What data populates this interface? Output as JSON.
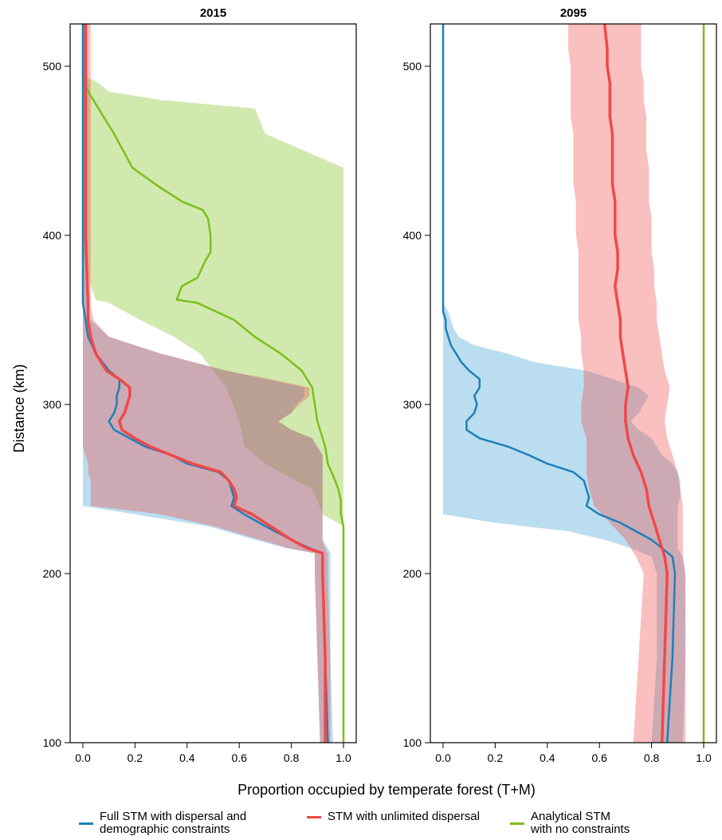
{
  "chart_data": {
    "type": "line",
    "xlabel": "Proportion occupied by temperate forest (T+M)",
    "ylabel": "Distance (km)",
    "xlim": [
      0,
      1
    ],
    "ylim": [
      100,
      525
    ],
    "xticks": [
      "0.0",
      "0.2",
      "0.4",
      "0.6",
      "0.8",
      "1.0"
    ],
    "yticks": [
      "100",
      "200",
      "300",
      "400",
      "500"
    ],
    "legend_position": "bottom",
    "colors": {
      "full": "#1f7fb8",
      "unlimited": "#f04848",
      "analytical": "#7cbf1a"
    },
    "legend": [
      {
        "key": "full",
        "label": "Full STM with dispersal and\ndemographic constraints"
      },
      {
        "key": "unlimited",
        "label": "STM with unlimited dispersal"
      },
      {
        "key": "analytical",
        "label": "Analytical STM\nwith no constraints"
      }
    ],
    "panels": [
      {
        "title": "2015",
        "series": [
          {
            "key": "analytical",
            "y": [
              100,
              228,
              235,
              243,
              250,
              258,
              265,
              275,
              290,
              310,
              320,
              330,
              340,
              350,
              360,
              362,
              370,
              375,
              385,
              390,
              400,
              410,
              415,
              420,
              430,
              440,
              460,
              475,
              480,
              485,
              490,
              495,
              525
            ],
            "x": [
              1.0,
              1.0,
              0.99,
              0.99,
              0.98,
              0.96,
              0.94,
              0.93,
              0.9,
              0.88,
              0.84,
              0.76,
              0.66,
              0.58,
              0.44,
              0.36,
              0.38,
              0.44,
              0.47,
              0.49,
              0.49,
              0.48,
              0.46,
              0.38,
              0.28,
              0.19,
              0.12,
              0.06,
              0.04,
              0.02,
              0.01,
              0.0,
              0.0
            ],
            "upper": [
              1.0,
              1.0,
              1.0,
              1.0,
              1.0,
              1.0,
              1.0,
              1.0,
              1.0,
              1.0,
              1.0,
              1.0,
              1.0,
              1.0,
              1.0,
              1.0,
              1.0,
              1.0,
              1.0,
              1.0,
              1.0,
              1.0,
              1.0,
              1.0,
              1.0,
              1.0,
              0.7,
              0.66,
              0.3,
              0.1,
              0.06,
              0.0,
              0.0
            ],
            "lower": [
              1.0,
              1.0,
              0.92,
              0.9,
              0.88,
              0.78,
              0.7,
              0.62,
              0.6,
              0.55,
              0.5,
              0.45,
              0.35,
              0.22,
              0.1,
              0.05,
              0.03,
              0.02,
              0.01,
              0.0,
              0.0,
              0.0,
              0.0,
              0.0,
              0.0,
              0.0,
              0.0,
              0.0,
              0.0,
              0.0,
              0.0,
              0.0,
              0.0
            ]
          },
          {
            "key": "full",
            "y": [
              100,
              150,
              200,
              212,
              215,
              220,
              228,
              235,
              240,
              245,
              250,
              255,
              260,
              265,
              270,
              275,
              280,
              285,
              290,
              295,
              300,
              305,
              310,
              315,
              320,
              330,
              340,
              350,
              360,
              400,
              450,
              500,
              525
            ],
            "x": [
              0.94,
              0.93,
              0.92,
              0.92,
              0.87,
              0.8,
              0.7,
              0.62,
              0.57,
              0.58,
              0.57,
              0.56,
              0.52,
              0.4,
              0.34,
              0.24,
              0.18,
              0.12,
              0.1,
              0.12,
              0.13,
              0.13,
              0.14,
              0.14,
              0.1,
              0.05,
              0.02,
              0.01,
              0.0,
              0.0,
              0.0,
              0.0,
              0.0
            ],
            "upper": [
              0.96,
              0.95,
              0.95,
              0.95,
              0.94,
              0.92,
              0.92,
              0.92,
              0.92,
              0.92,
              0.92,
              0.92,
              0.92,
              0.92,
              0.92,
              0.9,
              0.88,
              0.8,
              0.75,
              0.8,
              0.82,
              0.85,
              0.85,
              0.7,
              0.55,
              0.3,
              0.1,
              0.03,
              0.02,
              0.02,
              0.02,
              0.02,
              0.02
            ],
            "lower": [
              0.91,
              0.9,
              0.89,
              0.89,
              0.78,
              0.66,
              0.48,
              0.2,
              0.0,
              0.0,
              0.0,
              0.0,
              0.0,
              0.0,
              0.0,
              0.0,
              0.0,
              0.0,
              0.0,
              0.0,
              0.0,
              0.0,
              0.0,
              0.0,
              0.0,
              0.0,
              0.0,
              0.0,
              0.0,
              0.0,
              0.0,
              0.0,
              0.0
            ]
          },
          {
            "key": "unlimited",
            "y": [
              100,
              150,
              200,
              212,
              215,
              220,
              228,
              235,
              240,
              245,
              250,
              255,
              260,
              265,
              270,
              275,
              280,
              285,
              290,
              295,
              300,
              305,
              310,
              315,
              320,
              330,
              340,
              350,
              360,
              400,
              450,
              500,
              525
            ],
            "x": [
              0.93,
              0.93,
              0.92,
              0.92,
              0.86,
              0.8,
              0.72,
              0.65,
              0.58,
              0.59,
              0.58,
              0.56,
              0.53,
              0.42,
              0.34,
              0.26,
              0.2,
              0.15,
              0.14,
              0.16,
              0.17,
              0.18,
              0.18,
              0.14,
              0.09,
              0.05,
              0.03,
              0.02,
              0.02,
              0.01,
              0.01,
              0.01,
              0.01
            ],
            "upper": [
              0.95,
              0.95,
              0.94,
              0.94,
              0.93,
              0.92,
              0.92,
              0.92,
              0.92,
              0.92,
              0.92,
              0.92,
              0.92,
              0.92,
              0.92,
              0.9,
              0.88,
              0.8,
              0.75,
              0.8,
              0.83,
              0.87,
              0.87,
              0.72,
              0.55,
              0.3,
              0.1,
              0.04,
              0.03,
              0.03,
              0.03,
              0.03,
              0.03
            ],
            "lower": [
              0.91,
              0.9,
              0.89,
              0.89,
              0.79,
              0.68,
              0.5,
              0.3,
              0.03,
              0.03,
              0.03,
              0.03,
              0.02,
              0.02,
              0.01,
              0.0,
              0.0,
              0.0,
              0.0,
              0.0,
              0.0,
              0.0,
              0.0,
              0.0,
              0.0,
              0.0,
              0.0,
              0.0,
              0.0,
              0.0,
              0.0,
              0.0,
              0.0
            ]
          }
        ]
      },
      {
        "title": "2095",
        "series": [
          {
            "key": "analytical",
            "y": [
              100,
              525
            ],
            "x": [
              1.0,
              1.0
            ],
            "upper": [
              1.0,
              1.0
            ],
            "lower": [
              1.0,
              1.0
            ]
          },
          {
            "key": "full",
            "y": [
              100,
              150,
              200,
              210,
              215,
              220,
              225,
              230,
              235,
              240,
              245,
              250,
              255,
              260,
              265,
              270,
              275,
              280,
              285,
              290,
              295,
              300,
              305,
              310,
              315,
              320,
              325,
              330,
              335,
              340,
              345,
              350,
              355,
              360,
              400,
              500,
              525
            ],
            "x": [
              0.86,
              0.88,
              0.89,
              0.88,
              0.84,
              0.8,
              0.74,
              0.68,
              0.6,
              0.55,
              0.56,
              0.55,
              0.54,
              0.5,
              0.4,
              0.33,
              0.25,
              0.14,
              0.09,
              0.09,
              0.12,
              0.13,
              0.12,
              0.14,
              0.14,
              0.1,
              0.07,
              0.05,
              0.03,
              0.02,
              0.01,
              0.01,
              0.0,
              0.0,
              0.0,
              0.0,
              0.0
            ],
            "upper": [
              0.92,
              0.93,
              0.93,
              0.92,
              0.9,
              0.9,
              0.9,
              0.9,
              0.9,
              0.9,
              0.91,
              0.91,
              0.91,
              0.9,
              0.88,
              0.84,
              0.82,
              0.8,
              0.75,
              0.72,
              0.75,
              0.77,
              0.79,
              0.75,
              0.65,
              0.55,
              0.35,
              0.25,
              0.12,
              0.06,
              0.04,
              0.03,
              0.02,
              0.0,
              0.0,
              0.0,
              0.0
            ],
            "lower": [
              0.8,
              0.82,
              0.82,
              0.8,
              0.72,
              0.62,
              0.48,
              0.2,
              0.0,
              0.0,
              0.0,
              0.0,
              0.0,
              0.0,
              0.0,
              0.0,
              0.0,
              0.0,
              0.0,
              0.0,
              0.0,
              0.0,
              0.0,
              0.0,
              0.0,
              0.0,
              0.0,
              0.0,
              0.0,
              0.0,
              0.0,
              0.0,
              0.0,
              0.0,
              0.0,
              0.0,
              0.0
            ]
          },
          {
            "key": "unlimited",
            "y": [
              100,
              150,
              200,
              210,
              220,
              230,
              240,
              250,
              260,
              270,
              280,
              290,
              300,
              310,
              320,
              330,
              340,
              350,
              360,
              370,
              380,
              390,
              400,
              410,
              420,
              430,
              440,
              450,
              460,
              470,
              480,
              490,
              500,
              510,
              525
            ],
            "x": [
              0.84,
              0.85,
              0.86,
              0.85,
              0.83,
              0.81,
              0.79,
              0.78,
              0.76,
              0.73,
              0.71,
              0.7,
              0.7,
              0.71,
              0.7,
              0.69,
              0.68,
              0.68,
              0.67,
              0.66,
              0.67,
              0.67,
              0.66,
              0.66,
              0.66,
              0.65,
              0.65,
              0.65,
              0.65,
              0.64,
              0.64,
              0.64,
              0.63,
              0.63,
              0.62
            ],
            "upper": [
              0.93,
              0.93,
              0.93,
              0.92,
              0.92,
              0.92,
              0.92,
              0.91,
              0.9,
              0.88,
              0.86,
              0.85,
              0.86,
              0.87,
              0.85,
              0.84,
              0.83,
              0.82,
              0.82,
              0.81,
              0.81,
              0.8,
              0.8,
              0.8,
              0.79,
              0.79,
              0.79,
              0.78,
              0.78,
              0.78,
              0.77,
              0.77,
              0.76,
              0.76,
              0.76
            ],
            "lower": [
              0.73,
              0.75,
              0.77,
              0.74,
              0.7,
              0.64,
              0.58,
              0.56,
              0.55,
              0.55,
              0.55,
              0.53,
              0.53,
              0.54,
              0.54,
              0.53,
              0.53,
              0.52,
              0.52,
              0.52,
              0.52,
              0.52,
              0.51,
              0.51,
              0.51,
              0.5,
              0.5,
              0.5,
              0.5,
              0.49,
              0.49,
              0.49,
              0.49,
              0.48,
              0.48
            ]
          }
        ]
      }
    ]
  }
}
